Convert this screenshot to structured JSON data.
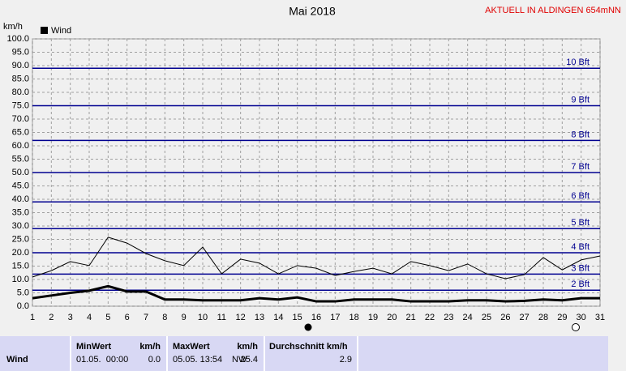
{
  "chart_data": {
    "type": "line",
    "title": "Mai 2018",
    "y_label": "km/h",
    "x": [
      1,
      2,
      3,
      4,
      5,
      6,
      7,
      8,
      9,
      10,
      11,
      12,
      13,
      14,
      15,
      16,
      17,
      18,
      19,
      20,
      21,
      22,
      23,
      24,
      25,
      26,
      27,
      28,
      29,
      30,
      31
    ],
    "xlim": [
      1,
      31
    ],
    "xticks": [
      1,
      2,
      3,
      4,
      5,
      6,
      7,
      8,
      9,
      10,
      11,
      12,
      13,
      14,
      15,
      16,
      17,
      18,
      19,
      20,
      21,
      22,
      23,
      24,
      25,
      26,
      27,
      28,
      29,
      30,
      31
    ],
    "ylim": [
      0,
      100
    ],
    "yticks": [
      {
        "value": 0,
        "label": "0.0"
      },
      {
        "value": 5,
        "label": "5.0"
      },
      {
        "value": 10,
        "label": "10.0"
      },
      {
        "value": 15,
        "label": "15.0"
      },
      {
        "value": 20,
        "label": "20.0"
      },
      {
        "value": 25,
        "label": "25.0"
      },
      {
        "value": 30,
        "label": "30.0"
      },
      {
        "value": 35,
        "label": "35.0"
      },
      {
        "value": 40,
        "label": "40.0"
      },
      {
        "value": 45,
        "label": "45.0"
      },
      {
        "value": 50,
        "label": "50.0"
      },
      {
        "value": 55,
        "label": "55.0"
      },
      {
        "value": 60,
        "label": "60.0"
      },
      {
        "value": 65,
        "label": "65.0"
      },
      {
        "value": 70,
        "label": "70.0"
      },
      {
        "value": 75,
        "label": "75.0"
      },
      {
        "value": 80,
        "label": "80.0"
      },
      {
        "value": 85,
        "label": "85.0"
      },
      {
        "value": 90,
        "label": "90.0"
      },
      {
        "value": 95,
        "label": "95.0"
      },
      {
        "value": 100,
        "label": "100.0"
      }
    ],
    "grid": true,
    "band_color": "#000090",
    "bands": [
      {
        "value": 6,
        "label": "2 Bft"
      },
      {
        "value": 12,
        "label": "3 Bft"
      },
      {
        "value": 20,
        "label": "4 Bft"
      },
      {
        "value": 29,
        "label": "5 Bft"
      },
      {
        "value": 39,
        "label": "6 Bft"
      },
      {
        "value": 50,
        "label": "7 Bft"
      },
      {
        "value": 62,
        "label": "8 Bft"
      },
      {
        "value": 75,
        "label": "9 Bft"
      },
      {
        "value": 89,
        "label": "10 Bft"
      }
    ],
    "series": [
      {
        "color": "#000000",
        "width": 1,
        "values": [
          10.9,
          13.3,
          16.7,
          15.2,
          25.8,
          23.6,
          19.7,
          17,
          15.2,
          22.1,
          12.1,
          17.6,
          16.1,
          12.1,
          15.2,
          14.2,
          11.5,
          13,
          14.2,
          12.1,
          16.7,
          15.2,
          13.3,
          15.8,
          12.1,
          10.3,
          11.8,
          18.2,
          13.6,
          17.3,
          18.8
        ]
      },
      {
        "name": "Wind",
        "color": "#000000",
        "width": 3,
        "values": [
          3,
          4,
          5,
          5.8,
          7.5,
          5.5,
          5.5,
          2.5,
          2.5,
          2.2,
          2.2,
          2.2,
          3,
          2.5,
          3.3,
          1.8,
          1.8,
          2.5,
          2.5,
          2.5,
          1.8,
          1.8,
          1.8,
          2.2,
          2.2,
          1.8,
          2,
          2.5,
          2.2,
          3,
          3
        ]
      }
    ]
  },
  "header": {
    "station": "AKTUELL IN ALDINGEN 654mNN"
  },
  "table": {
    "row_label": "Wind",
    "min": {
      "header": "MinWert",
      "unit": "km/h",
      "time": "01.05.  00:00",
      "value": "0.0"
    },
    "max": {
      "header": "MaxWert",
      "unit": "km/h",
      "time": "05.05. 13:54",
      "direction": "NW",
      "value": "25.4"
    },
    "avg": {
      "header": "Durchschnitt km/h",
      "value": "2.9"
    }
  }
}
